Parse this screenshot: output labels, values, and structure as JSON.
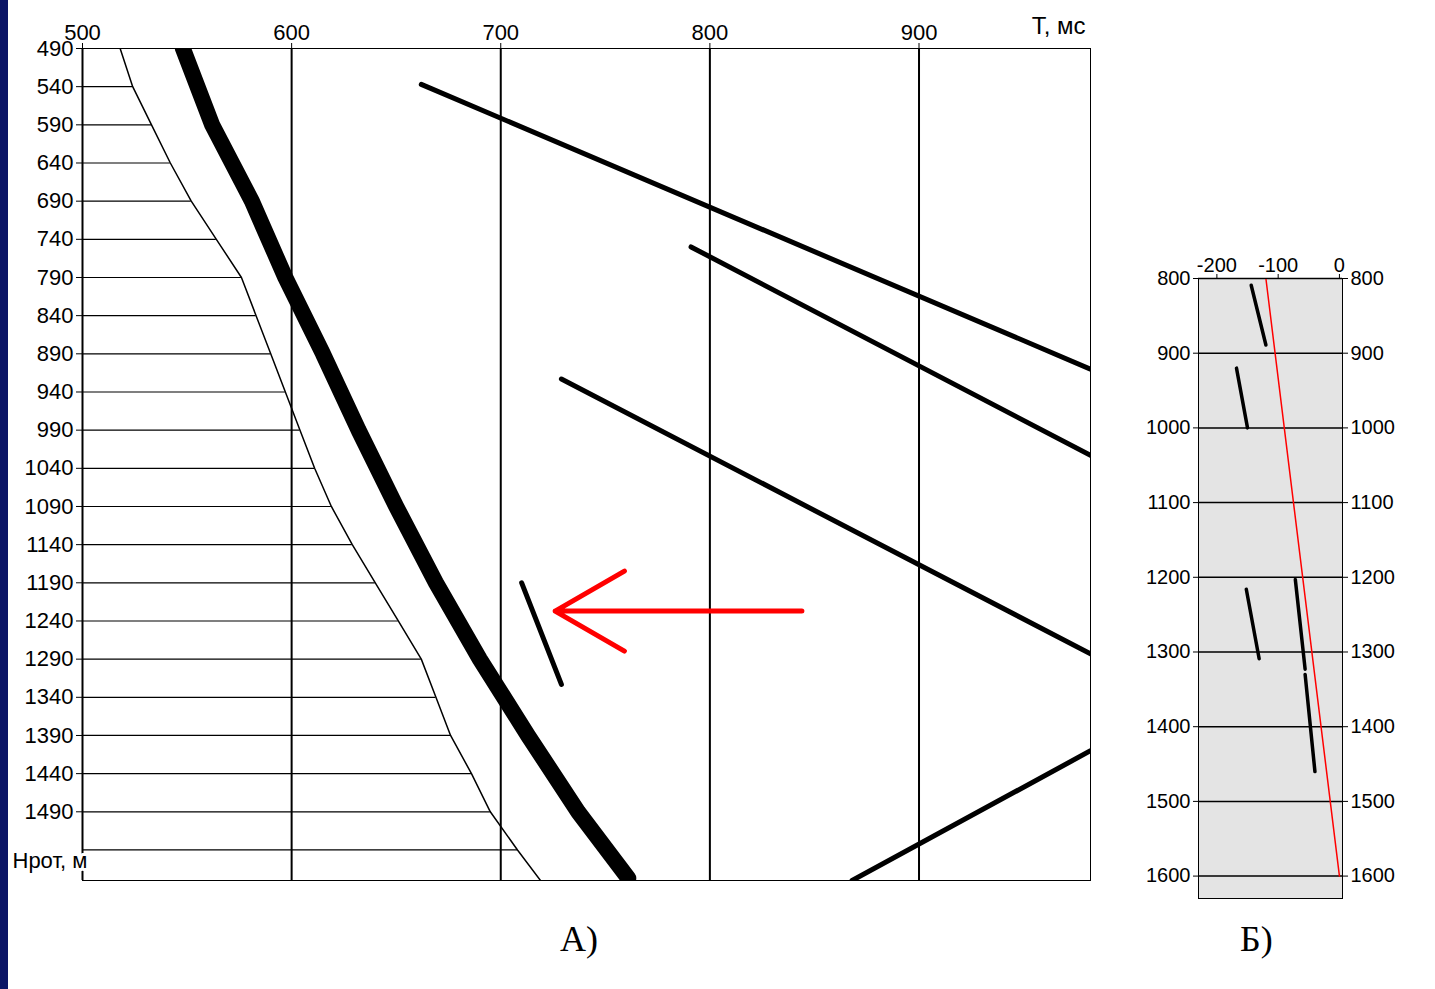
{
  "chart_data": [
    {
      "type": "line",
      "xlabel": "T, мс",
      "ylabel": "Нрот, м",
      "panel": "А)",
      "xlim": [
        500,
        982
      ],
      "xticks": [
        500,
        600,
        700,
        800,
        900
      ],
      "ylim": [
        490,
        1580
      ],
      "yticks": [
        490,
        540,
        590,
        640,
        690,
        740,
        790,
        840,
        890,
        940,
        990,
        1040,
        1090,
        1140,
        1190,
        1240,
        1290,
        1340,
        1390,
        1440,
        1490
      ],
      "grid": "x",
      "onset": {
        "color": "#000000",
        "x": [
          518,
          524,
          533,
          542,
          552,
          564,
          576,
          583,
          590,
          597,
          604,
          611,
          619,
          629,
          640,
          651,
          662,
          669,
          676,
          686,
          695,
          708,
          719
        ],
        "y": [
          490,
          540,
          590,
          640,
          690,
          740,
          790,
          840,
          890,
          940,
          990,
          1040,
          1090,
          1140,
          1190,
          1240,
          1290,
          1340,
          1390,
          1440,
          1490,
          1540,
          1580
        ]
      },
      "first_arrival": {
        "color": "#000000",
        "x": [
          548,
          562,
          581,
          597,
          615,
          632,
          650,
          669,
          690,
          713,
          737,
          761
        ],
        "y": [
          490,
          590,
          690,
          790,
          890,
          990,
          1090,
          1190,
          1290,
          1390,
          1490,
          1577
        ]
      },
      "events": [
        {
          "color": "#000000",
          "x": [
            662,
            982
          ],
          "y": [
            537,
            910
          ]
        },
        {
          "color": "#000000",
          "x": [
            791,
            982
          ],
          "y": [
            750,
            1023
          ]
        },
        {
          "color": "#000000",
          "x": [
            729,
            982
          ],
          "y": [
            923,
            1283
          ]
        },
        {
          "color": "#000000",
          "x": [
            710,
            729
          ],
          "y": [
            1190,
            1323
          ]
        },
        {
          "color": "#000000",
          "x": [
            868,
            982
          ],
          "y": [
            1580,
            1410
          ]
        }
      ],
      "arrow": {
        "x1": 844,
        "x2": 726,
        "y": 1227,
        "color": "red"
      }
    },
    {
      "type": "line",
      "panel": "Б)",
      "xlim": [
        -230,
        5
      ],
      "xticks": [
        -200,
        -100,
        0
      ],
      "ylim": [
        800,
        1630
      ],
      "yticks": [
        800,
        900,
        1000,
        1100,
        1200,
        1300,
        1400,
        1500,
        1600
      ],
      "grid": "y",
      "line": {
        "color": "red",
        "x": [
          -120,
          0
        ],
        "y": [
          800,
          1600
        ]
      },
      "events": [
        {
          "color": "#000000",
          "x": [
            -144,
            -120
          ],
          "y": [
            809,
            889
          ]
        },
        {
          "color": "#000000",
          "x": [
            -168,
            -150
          ],
          "y": [
            920,
            1000
          ]
        },
        {
          "color": "#000000",
          "x": [
            -152,
            -131
          ],
          "y": [
            1216,
            1309
          ]
        },
        {
          "color": "#000000",
          "x": [
            -72,
            -56
          ],
          "y": [
            1203,
            1323
          ]
        },
        {
          "color": "#000000",
          "x": [
            -56,
            -40
          ],
          "y": [
            1330,
            1460
          ]
        }
      ]
    }
  ]
}
